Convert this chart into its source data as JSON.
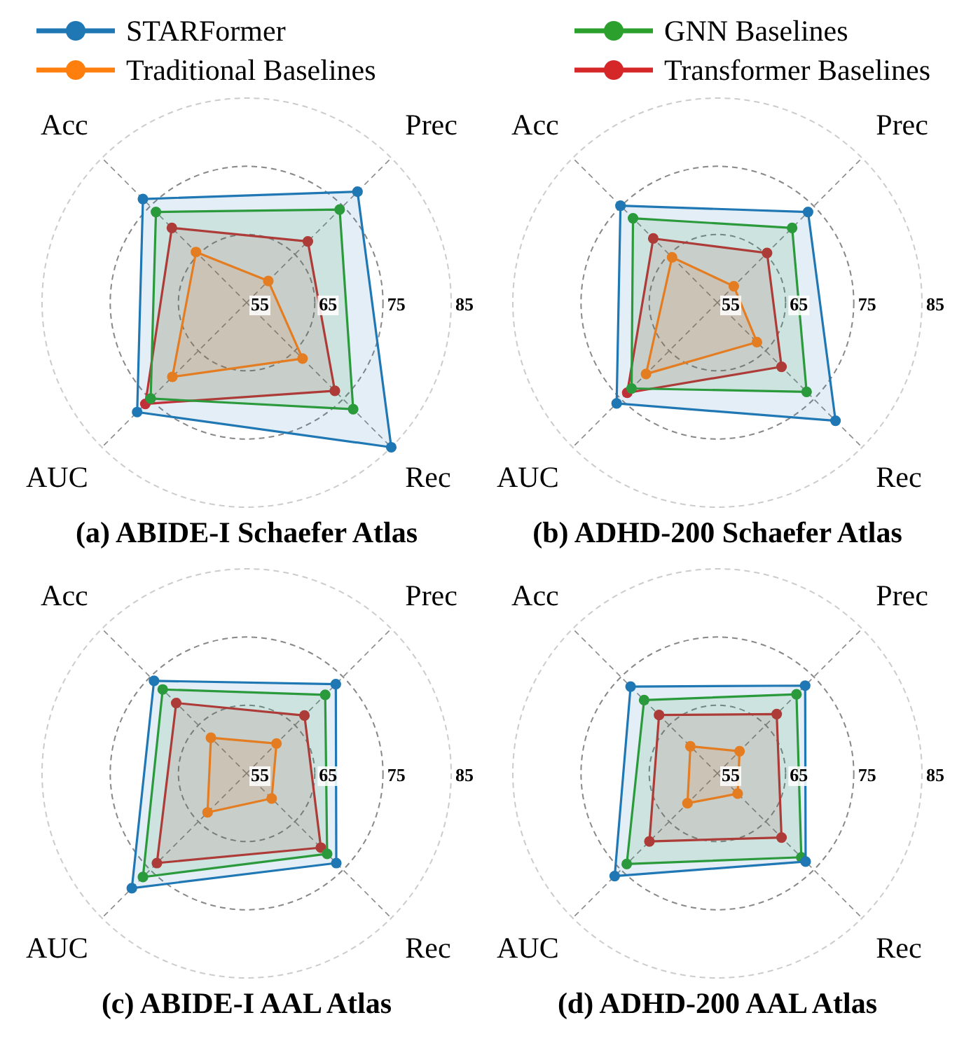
{
  "chart_data": [
    {
      "type": "radar",
      "title": "(a) ABIDE-I Schaefer Atlas",
      "categories": [
        "Prec",
        "Rec",
        "AUC",
        "Acc"
      ],
      "ylim": [
        55,
        85
      ],
      "yticks": [
        55,
        65,
        75,
        85
      ],
      "grid": true,
      "legend": "top",
      "marker": "circle",
      "series": [
        {
          "name": "STARFormer",
          "color": "#1f77b4",
          "values": [
            78.0,
            85.0,
            77.7,
            76.5
          ]
        },
        {
          "name": "Traditional Baselines",
          "color": "#ff7f0e",
          "values": [
            59.5,
            66.6,
            70.4,
            65.5
          ]
        },
        {
          "name": "GNN Baselines",
          "color": "#2ca02c",
          "values": [
            74.3,
            77.1,
            74.9,
            73.8
          ]
        },
        {
          "name": "Transformer Baselines",
          "color": "#d62728",
          "values": [
            67.7,
            73.3,
            76.0,
            70.5
          ]
        }
      ]
    },
    {
      "type": "radar",
      "title": "(b) ADHD-200 Schaefer Atlas",
      "categories": [
        "Prec",
        "Rec",
        "AUC",
        "Acc"
      ],
      "ylim": [
        55,
        85
      ],
      "yticks": [
        55,
        65,
        75,
        85
      ],
      "grid": true,
      "marker": "circle",
      "series": [
        {
          "color": "#1f77b4",
          "values": [
            73.8,
            79.5,
            75.9,
            75.1
          ]
        },
        {
          "color": "#ff7f0e",
          "values": [
            58.4,
            63.2,
            69.8,
            64.4
          ]
        },
        {
          "color": "#2ca02c",
          "values": [
            70.5,
            73.5,
            72.8,
            72.5
          ]
        },
        {
          "color": "#d62728",
          "values": [
            65.3,
            68.3,
            73.7,
            68.3
          ]
        }
      ]
    },
    {
      "type": "radar",
      "title": "(c) ABIDE-I AAL Atlas",
      "categories": [
        "Prec",
        "Rec",
        "AUC",
        "Acc"
      ],
      "ylim": [
        55,
        85
      ],
      "yticks": [
        55,
        65,
        75,
        85
      ],
      "grid": true,
      "marker": "circle",
      "series": [
        {
          "color": "#1f77b4",
          "values": [
            73.5,
            73.6,
            78.8,
            74.2
          ]
        },
        {
          "color": "#ff7f0e",
          "values": [
            61.2,
            60.2,
            63.1,
            62.4
          ]
        },
        {
          "color": "#2ca02c",
          "values": [
            71.3,
            71.7,
            76.5,
            72.4
          ]
        },
        {
          "color": "#d62728",
          "values": [
            67.0,
            70.4,
            73.6,
            69.6
          ]
        }
      ]
    },
    {
      "type": "radar",
      "title": "(d) ADHD-200 AAL Atlas",
      "categories": [
        "Prec",
        "Rec",
        "AUC",
        "Acc"
      ],
      "ylim": [
        55,
        85
      ],
      "yticks": [
        55,
        65,
        75,
        85
      ],
      "grid": true,
      "marker": "circle",
      "series": [
        {
          "color": "#1f77b4",
          "values": [
            73.2,
            73.3,
            76.3,
            73.0
          ]
        },
        {
          "color": "#ff7f0e",
          "values": [
            59.6,
            59.2,
            61.2,
            60.6
          ]
        },
        {
          "color": "#2ca02c",
          "values": [
            71.4,
            72.4,
            73.8,
            70.2
          ]
        },
        {
          "color": "#d62728",
          "values": [
            67.3,
            68.3,
            69.1,
            67.1
          ]
        }
      ]
    }
  ]
}
